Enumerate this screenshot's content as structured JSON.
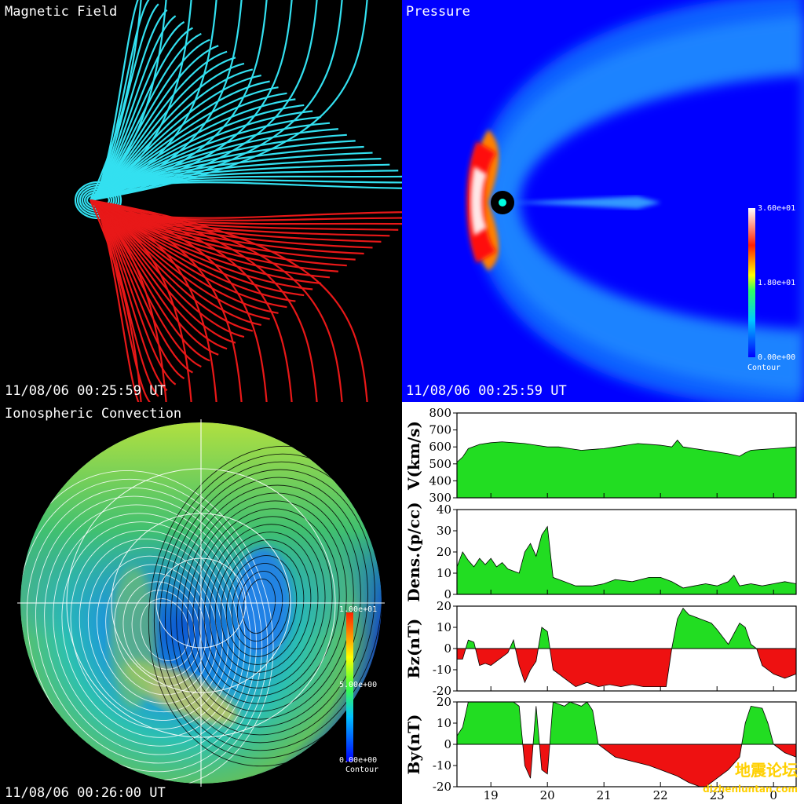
{
  "panels": {
    "magnetic_field": {
      "title": "Magnetic Field",
      "timestamp": "11/08/06 00:25:59 UT"
    },
    "pressure": {
      "title": "Pressure",
      "timestamp": "11/08/06 00:25:59 UT",
      "colorbar": {
        "max": "3.60e+01",
        "mid": "1.80e+01",
        "min": "0.00e+00",
        "label": "Contour"
      }
    },
    "ionospheric_convection": {
      "title": "Ionospheric Convection",
      "timestamp": "11/08/06 00:26:00 UT",
      "colorbar": {
        "max": "1.00e+01",
        "mid": "5.00e+00",
        "min": "0.00e+00",
        "label": "Contour"
      }
    }
  },
  "watermark": {
    "chinese": "地震论坛",
    "url": "dizhenluntan.com"
  },
  "colors": {
    "field_north": "#33e0f0",
    "field_south": "#e81818",
    "positive_fill": "#22dd22",
    "negative_fill": "#ee1111"
  },
  "chart_data": {
    "type": "area",
    "x_ticks": [
      "19",
      "20",
      "21",
      "22",
      "23",
      "0"
    ],
    "x_tick_hours": [
      19,
      20,
      21,
      22,
      23,
      24
    ],
    "x_range_hours": [
      18.4,
      24.4
    ],
    "series": [
      {
        "name": "V(km/s)",
        "ylim": [
          300,
          800
        ],
        "y_ticks": [
          "800",
          "700",
          "600",
          "500",
          "400",
          "300"
        ],
        "fill": "positive",
        "points": [
          [
            18.4,
            510
          ],
          [
            18.5,
            540
          ],
          [
            18.6,
            590
          ],
          [
            18.8,
            615
          ],
          [
            19.0,
            625
          ],
          [
            19.2,
            630
          ],
          [
            19.4,
            625
          ],
          [
            19.6,
            620
          ],
          [
            19.8,
            610
          ],
          [
            20.0,
            600
          ],
          [
            20.2,
            600
          ],
          [
            20.4,
            590
          ],
          [
            20.6,
            580
          ],
          [
            20.8,
            585
          ],
          [
            21.0,
            590
          ],
          [
            21.2,
            600
          ],
          [
            21.4,
            610
          ],
          [
            21.6,
            620
          ],
          [
            21.8,
            615
          ],
          [
            22.0,
            610
          ],
          [
            22.2,
            600
          ],
          [
            22.3,
            640
          ],
          [
            22.4,
            600
          ],
          [
            22.6,
            590
          ],
          [
            22.8,
            580
          ],
          [
            23.0,
            570
          ],
          [
            23.2,
            560
          ],
          [
            23.4,
            545
          ],
          [
            23.5,
            565
          ],
          [
            23.6,
            580
          ],
          [
            23.8,
            585
          ],
          [
            24.0,
            590
          ],
          [
            24.2,
            595
          ],
          [
            24.4,
            600
          ]
        ]
      },
      {
        "name": "Dens.(p/cc)",
        "ylim": [
          0,
          40
        ],
        "y_ticks": [
          "40",
          "30",
          "20",
          "10",
          "0"
        ],
        "fill": "positive",
        "points": [
          [
            18.4,
            13
          ],
          [
            18.5,
            20
          ],
          [
            18.6,
            16
          ],
          [
            18.7,
            13
          ],
          [
            18.8,
            17
          ],
          [
            18.9,
            14
          ],
          [
            19.0,
            17
          ],
          [
            19.1,
            13
          ],
          [
            19.2,
            15
          ],
          [
            19.3,
            12
          ],
          [
            19.5,
            10
          ],
          [
            19.6,
            20
          ],
          [
            19.7,
            24
          ],
          [
            19.8,
            18
          ],
          [
            19.9,
            28
          ],
          [
            20.0,
            32
          ],
          [
            20.1,
            8
          ],
          [
            20.3,
            6
          ],
          [
            20.5,
            4
          ],
          [
            20.8,
            4
          ],
          [
            21.0,
            5
          ],
          [
            21.2,
            7
          ],
          [
            21.5,
            6
          ],
          [
            21.8,
            8
          ],
          [
            22.0,
            8
          ],
          [
            22.2,
            6
          ],
          [
            22.4,
            3
          ],
          [
            22.6,
            4
          ],
          [
            22.8,
            5
          ],
          [
            23.0,
            4
          ],
          [
            23.2,
            6
          ],
          [
            23.3,
            9
          ],
          [
            23.4,
            4
          ],
          [
            23.6,
            5
          ],
          [
            23.8,
            4
          ],
          [
            24.0,
            5
          ],
          [
            24.2,
            6
          ],
          [
            24.4,
            5
          ]
        ]
      },
      {
        "name": "Bz(nT)",
        "ylim": [
          -20,
          20
        ],
        "y_ticks": [
          "20",
          "10",
          "0",
          "-10",
          "-20"
        ],
        "fill": "signed",
        "points": [
          [
            18.4,
            -5
          ],
          [
            18.5,
            -5
          ],
          [
            18.6,
            4
          ],
          [
            18.7,
            3
          ],
          [
            18.8,
            -8
          ],
          [
            18.9,
            -7
          ],
          [
            19.0,
            -8
          ],
          [
            19.1,
            -6
          ],
          [
            19.2,
            -4
          ],
          [
            19.3,
            -2
          ],
          [
            19.4,
            4
          ],
          [
            19.5,
            -8
          ],
          [
            19.6,
            -16
          ],
          [
            19.7,
            -10
          ],
          [
            19.8,
            -6
          ],
          [
            19.9,
            10
          ],
          [
            20.0,
            8
          ],
          [
            20.1,
            -10
          ],
          [
            20.3,
            -14
          ],
          [
            20.5,
            -18
          ],
          [
            20.7,
            -16
          ],
          [
            20.9,
            -18
          ],
          [
            21.1,
            -17
          ],
          [
            21.3,
            -18
          ],
          [
            21.5,
            -17
          ],
          [
            21.7,
            -18
          ],
          [
            21.9,
            -18
          ],
          [
            22.0,
            -18
          ],
          [
            22.1,
            -18
          ],
          [
            22.2,
            0
          ],
          [
            22.3,
            14
          ],
          [
            22.4,
            19
          ],
          [
            22.5,
            16
          ],
          [
            22.7,
            14
          ],
          [
            22.9,
            12
          ],
          [
            23.0,
            9
          ],
          [
            23.2,
            2
          ],
          [
            23.4,
            12
          ],
          [
            23.5,
            10
          ],
          [
            23.6,
            2
          ],
          [
            23.7,
            0
          ],
          [
            23.8,
            -8
          ],
          [
            24.0,
            -12
          ],
          [
            24.2,
            -14
          ],
          [
            24.4,
            -12
          ]
        ]
      },
      {
        "name": "By(nT)",
        "ylim": [
          -20,
          20
        ],
        "y_ticks": [
          "20",
          "10",
          "0",
          "-10",
          "-20"
        ],
        "fill": "signed",
        "points": [
          [
            18.4,
            4
          ],
          [
            18.5,
            8
          ],
          [
            18.6,
            20
          ],
          [
            18.8,
            20
          ],
          [
            19.0,
            20
          ],
          [
            19.2,
            20
          ],
          [
            19.4,
            20
          ],
          [
            19.5,
            18
          ],
          [
            19.6,
            -10
          ],
          [
            19.7,
            -16
          ],
          [
            19.8,
            18
          ],
          [
            19.9,
            -12
          ],
          [
            20.0,
            -14
          ],
          [
            20.1,
            20
          ],
          [
            20.3,
            18
          ],
          [
            20.4,
            20
          ],
          [
            20.6,
            18
          ],
          [
            20.7,
            20
          ],
          [
            20.8,
            16
          ],
          [
            20.9,
            0
          ],
          [
            21.0,
            -2
          ],
          [
            21.2,
            -6
          ],
          [
            21.5,
            -8
          ],
          [
            21.8,
            -10
          ],
          [
            22.0,
            -12
          ],
          [
            22.3,
            -15
          ],
          [
            22.5,
            -18
          ],
          [
            22.7,
            -20
          ],
          [
            22.8,
            -20
          ],
          [
            23.0,
            -16
          ],
          [
            23.2,
            -12
          ],
          [
            23.4,
            -6
          ],
          [
            23.5,
            10
          ],
          [
            23.6,
            18
          ],
          [
            23.8,
            17
          ],
          [
            23.9,
            10
          ],
          [
            24.0,
            0
          ],
          [
            24.2,
            -4
          ],
          [
            24.4,
            -6
          ]
        ]
      }
    ]
  }
}
